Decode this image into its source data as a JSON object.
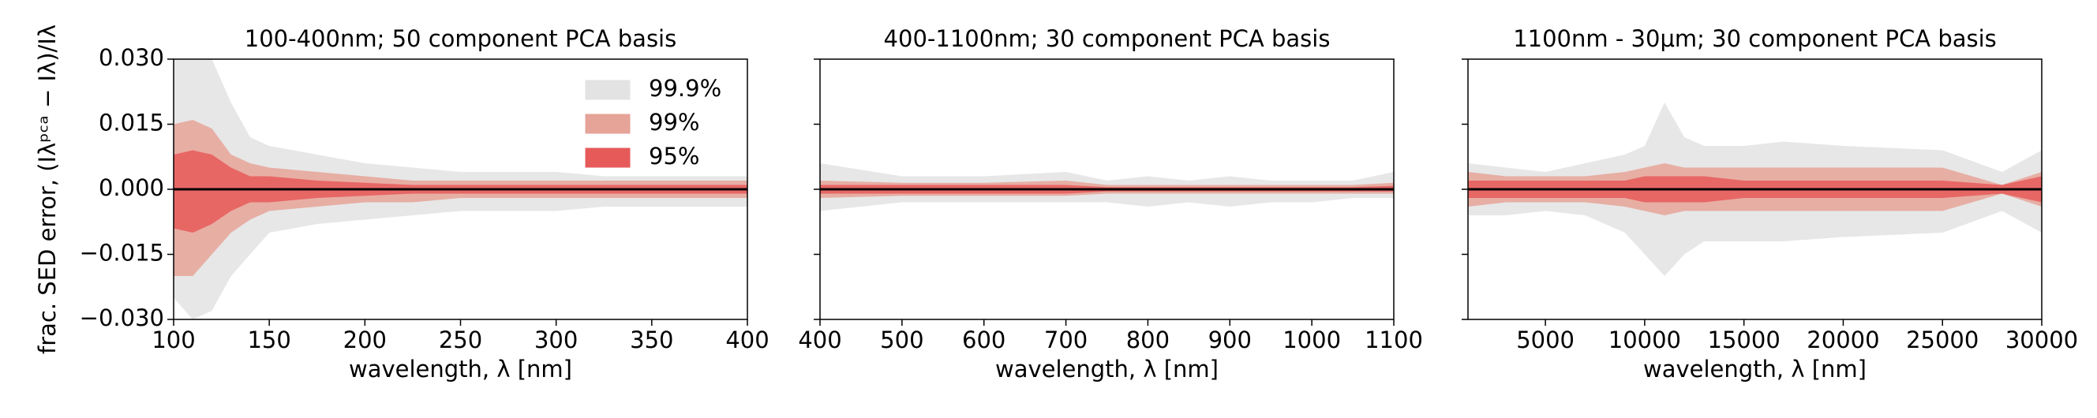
{
  "chart_data": [
    {
      "type": "band",
      "title": "100-400nm; 50 component PCA basis",
      "xlabel": "wavelength, λ [nm]",
      "ylabel": "frac. SED error, (Iλᵖᶜᵃ − Iλ)/Iλ",
      "x": [
        100,
        110,
        120,
        130,
        140,
        150,
        175,
        200,
        225,
        250,
        275,
        300,
        325,
        350,
        375,
        400
      ],
      "xlim": [
        100,
        400
      ],
      "xticks": [
        100,
        150,
        200,
        250,
        300,
        350,
        400
      ],
      "ylim": [
        -0.03,
        0.03
      ],
      "ytick_labels": true,
      "yticks": [
        {
          "value": -0.03,
          "label": "−0.030"
        },
        {
          "value": -0.015,
          "label": "−0.015"
        },
        {
          "value": 0,
          "label": "0.000"
        },
        {
          "value": 0.015,
          "label": "0.015"
        },
        {
          "value": 0.03,
          "label": "0.030"
        }
      ],
      "legend": "upper right",
      "series": [
        {
          "name": "99.9%",
          "color": "#e3e3e3",
          "upper": [
            0.03,
            0.03,
            0.03,
            0.02,
            0.012,
            0.01,
            0.008,
            0.006,
            0.005,
            0.004,
            0.004,
            0.004,
            0.003,
            0.003,
            0.003,
            0.003
          ],
          "lower": [
            -0.025,
            -0.03,
            -0.028,
            -0.02,
            -0.015,
            -0.01,
            -0.008,
            -0.007,
            -0.006,
            -0.005,
            -0.005,
            -0.005,
            -0.004,
            -0.004,
            -0.004,
            -0.004
          ]
        },
        {
          "name": "99%",
          "color": "#e6a398",
          "upper": [
            0.015,
            0.016,
            0.014,
            0.008,
            0.006,
            0.005,
            0.004,
            0.003,
            0.002,
            0.002,
            0.002,
            0.002,
            0.002,
            0.002,
            0.002,
            0.002
          ],
          "lower": [
            -0.02,
            -0.02,
            -0.015,
            -0.01,
            -0.007,
            -0.005,
            -0.004,
            -0.003,
            -0.003,
            -0.002,
            -0.002,
            -0.002,
            -0.002,
            -0.002,
            -0.002,
            -0.002
          ]
        },
        {
          "name": "95%",
          "color": "#e65a5a",
          "upper": [
            0.008,
            0.009,
            0.008,
            0.005,
            0.003,
            0.003,
            0.002,
            0.0015,
            0.001,
            0.001,
            0.001,
            0.001,
            0.001,
            0.001,
            0.001,
            0.001
          ],
          "lower": [
            -0.009,
            -0.01,
            -0.008,
            -0.005,
            -0.003,
            -0.003,
            -0.002,
            -0.0015,
            -0.001,
            -0.001,
            -0.001,
            -0.001,
            -0.001,
            -0.001,
            -0.001,
            -0.001
          ]
        }
      ]
    },
    {
      "type": "band",
      "title": "400-1100nm; 30 component PCA basis",
      "xlabel": "wavelength, λ [nm]",
      "x": [
        400,
        500,
        600,
        700,
        750,
        800,
        850,
        900,
        950,
        1000,
        1050,
        1100
      ],
      "xlim": [
        400,
        1100
      ],
      "xticks": [
        400,
        500,
        600,
        700,
        800,
        900,
        1000,
        1100
      ],
      "ylim": [
        -0.03,
        0.03
      ],
      "ytick_labels": false,
      "yticks": [
        -0.03,
        -0.015,
        0,
        0.015,
        0.03
      ],
      "series": [
        {
          "color": "#e3e3e3",
          "upper": [
            0.006,
            0.003,
            0.003,
            0.004,
            0.002,
            0.003,
            0.002,
            0.003,
            0.002,
            0.002,
            0.002,
            0.004
          ],
          "lower": [
            -0.005,
            -0.003,
            -0.003,
            -0.003,
            -0.003,
            -0.004,
            -0.003,
            -0.004,
            -0.003,
            -0.003,
            -0.002,
            -0.002
          ]
        },
        {
          "color": "#e6a398",
          "upper": [
            0.002,
            0.0015,
            0.0015,
            0.002,
            0.001,
            0.001,
            0.001,
            0.001,
            0.001,
            0.001,
            0.001,
            0.0015
          ],
          "lower": [
            -0.002,
            -0.0015,
            -0.0015,
            -0.0015,
            -0.001,
            -0.001,
            -0.001,
            -0.001,
            -0.001,
            -0.001,
            -0.001,
            -0.001
          ]
        },
        {
          "color": "#e65a5a",
          "upper": [
            0.001,
            0.001,
            0.001,
            0.001,
            0.0005,
            0.0005,
            0.0005,
            0.0005,
            0.0005,
            0.0005,
            0.0005,
            0.0008
          ],
          "lower": [
            -0.001,
            -0.001,
            -0.001,
            -0.001,
            -0.0005,
            -0.0005,
            -0.0005,
            -0.0005,
            -0.0005,
            -0.0005,
            -0.0005,
            -0.0005
          ]
        }
      ]
    },
    {
      "type": "band",
      "title": "1100nm - 30μm; 30 component PCA basis",
      "xlabel": "wavelength, λ [nm]",
      "x": [
        1100,
        3000,
        5000,
        7000,
        9000,
        10000,
        11000,
        12000,
        13000,
        15000,
        17000,
        20000,
        25000,
        28000,
        30000
      ],
      "xlim": [
        1100,
        30000
      ],
      "xticks": [
        5000,
        10000,
        15000,
        20000,
        25000,
        30000
      ],
      "ylim": [
        -0.03,
        0.03
      ],
      "ytick_labels": false,
      "yticks": [
        -0.03,
        -0.015,
        0,
        0.015,
        0.03
      ],
      "series": [
        {
          "color": "#e3e3e3",
          "upper": [
            0.006,
            0.005,
            0.004,
            0.006,
            0.008,
            0.01,
            0.02,
            0.012,
            0.01,
            0.01,
            0.011,
            0.01,
            0.009,
            0.004,
            0.009
          ],
          "lower": [
            -0.006,
            -0.006,
            -0.005,
            -0.006,
            -0.01,
            -0.015,
            -0.02,
            -0.015,
            -0.012,
            -0.012,
            -0.012,
            -0.011,
            -0.01,
            -0.005,
            -0.01
          ]
        },
        {
          "color": "#e6a398",
          "upper": [
            0.004,
            0.003,
            0.003,
            0.003,
            0.004,
            0.005,
            0.006,
            0.005,
            0.005,
            0.005,
            0.005,
            0.005,
            0.005,
            0.001,
            0.004
          ],
          "lower": [
            -0.004,
            -0.003,
            -0.003,
            -0.003,
            -0.004,
            -0.005,
            -0.006,
            -0.005,
            -0.005,
            -0.005,
            -0.005,
            -0.005,
            -0.005,
            -0.001,
            -0.004
          ]
        },
        {
          "color": "#e65a5a",
          "upper": [
            0.002,
            0.002,
            0.002,
            0.002,
            0.002,
            0.003,
            0.003,
            0.003,
            0.003,
            0.002,
            0.002,
            0.002,
            0.002,
            0.001,
            0.003
          ],
          "lower": [
            -0.002,
            -0.002,
            -0.002,
            -0.002,
            -0.002,
            -0.003,
            -0.003,
            -0.003,
            -0.003,
            -0.002,
            -0.002,
            -0.002,
            -0.002,
            -0.001,
            -0.003
          ]
        }
      ]
    }
  ]
}
